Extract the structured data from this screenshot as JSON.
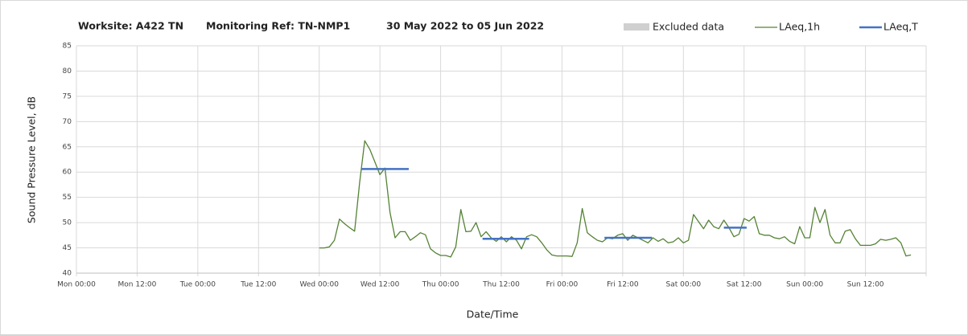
{
  "chart_data": {
    "type": "line",
    "title": [
      "Worksite: A422 TN",
      "Monitoring Ref: TN-NMP1",
      "30 May 2022 to 05 Jun 2022"
    ],
    "xlabel": "Date/Time",
    "ylabel": "Sound Pressure Level, dB",
    "xlim": [
      0,
      168
    ],
    "ylim": [
      40,
      85
    ],
    "xticks": [
      {
        "value": 0,
        "label": "Mon 00:00"
      },
      {
        "value": 12,
        "label": "Mon 12:00"
      },
      {
        "value": 24,
        "label": "Tue 00:00"
      },
      {
        "value": 36,
        "label": "Tue 12:00"
      },
      {
        "value": 48,
        "label": "Wed 00:00"
      },
      {
        "value": 60,
        "label": "Wed 12:00"
      },
      {
        "value": 72,
        "label": "Thu 00:00"
      },
      {
        "value": 84,
        "label": "Thu 12:00"
      },
      {
        "value": 96,
        "label": "Fri 00:00"
      },
      {
        "value": 108,
        "label": "Fri 12:00"
      },
      {
        "value": 120,
        "label": "Sat 00:00"
      },
      {
        "value": 132,
        "label": "Sat 12:00"
      },
      {
        "value": 144,
        "label": "Sun 00:00"
      },
      {
        "value": 156,
        "label": "Sun 12:00"
      }
    ],
    "yticks": [
      40,
      45,
      50,
      55,
      60,
      65,
      70,
      75,
      80,
      85
    ],
    "grid": true,
    "legend_entries": [
      {
        "name": "Excluded data",
        "color": "#d0d0d0"
      }
    ],
    "series": [
      {
        "name": "LAeq,1h",
        "color": "#548235",
        "x": [
          48,
          49,
          50,
          51,
          52,
          53,
          54,
          55,
          56,
          57,
          58,
          59,
          60,
          61,
          62,
          63,
          64,
          65,
          66,
          67,
          68,
          69,
          70,
          71,
          72,
          73,
          74,
          75,
          76,
          77,
          78,
          79,
          80,
          81,
          82,
          83,
          84,
          85,
          86,
          87,
          88,
          89,
          90,
          91,
          92,
          93,
          94,
          95,
          96,
          97,
          98,
          99,
          100,
          101,
          102,
          103,
          104,
          105,
          106,
          107,
          108,
          109,
          110,
          111,
          112,
          113,
          114,
          115,
          116,
          117,
          118,
          119,
          120,
          121,
          122,
          123,
          124,
          125,
          126,
          127,
          128,
          129,
          130,
          131,
          132,
          133,
          134,
          135,
          136,
          137,
          138,
          139,
          140,
          141,
          142,
          143,
          144,
          145,
          146,
          147,
          148,
          149,
          150,
          151,
          152,
          153,
          154,
          155,
          156,
          157,
          158,
          159,
          160,
          161,
          162,
          163,
          164,
          165
        ],
        "values": [
          45,
          45,
          45.2,
          46.5,
          50.7,
          49.8,
          49,
          48.3,
          58,
          66.2,
          64.5,
          62,
          59.5,
          60.8,
          52,
          47,
          48.2,
          48.2,
          46.5,
          47.2,
          48,
          47.6,
          44.8,
          44,
          43.5,
          43.5,
          43.2,
          45.2,
          52.6,
          48.2,
          48.3,
          50,
          47.2,
          48.2,
          47,
          46.3,
          47.2,
          46.2,
          47.2,
          46.5,
          44.8,
          47.2,
          47.6,
          47.2,
          46,
          44.6,
          43.6,
          43.4,
          43.4,
          43.4,
          43.3,
          46,
          52.8,
          48,
          47.2,
          46.5,
          46.2,
          47,
          46.8,
          47.5,
          47.8,
          46.5,
          47.5,
          47,
          46.5,
          46,
          47,
          46.3,
          46.8,
          46,
          46.2,
          47,
          46,
          46.5,
          51.6,
          50.2,
          48.8,
          50.5,
          49.2,
          48.8,
          50.5,
          49,
          47.2,
          47.7,
          50.8,
          50.3,
          51.2,
          47.8,
          47.5,
          47.5,
          47,
          46.8,
          47.2,
          46.3,
          45.8,
          49.2,
          47,
          47,
          53,
          50,
          52.6,
          47.5,
          46,
          46,
          48.3,
          48.6,
          46.8,
          45.5,
          45.5,
          45.5,
          45.8,
          46.7,
          46.5,
          46.7,
          47,
          46,
          43.4,
          43.6
        ]
      },
      {
        "name": "LAeq,T",
        "color": "#4472c4",
        "x": [
          56.4,
          65.7,
          70,
          80.3,
          89.5,
          95,
          104.4,
          113.8,
          120,
          128,
          132.5
        ],
        "values": [
          60.6,
          60.6,
          null,
          46.8,
          46.8,
          null,
          47,
          47,
          null,
          49,
          49
        ]
      }
    ]
  }
}
